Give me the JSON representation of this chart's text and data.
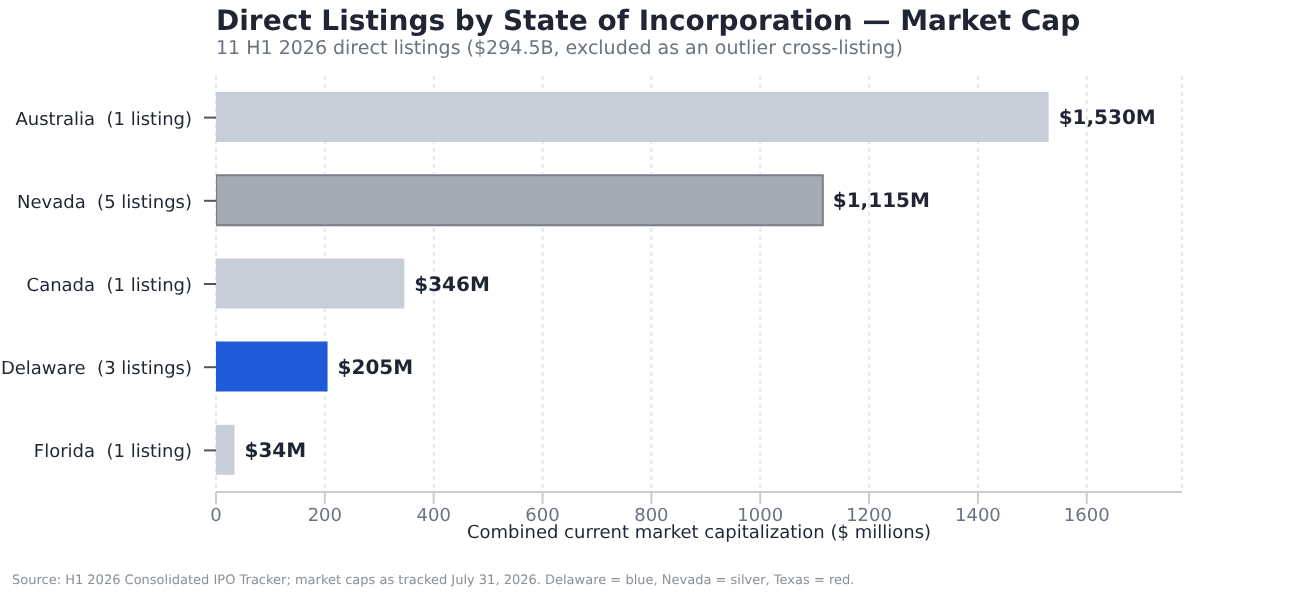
{
  "chart_data": {
    "type": "bar",
    "orientation": "horizontal",
    "title": "Direct Listings by State of Incorporation — Market Cap",
    "subtitle": "11 H1 2026 direct listings ($294.5B, excluded as an outlier cross-listing)",
    "xlabel": "Combined current market capitalization ($ millions)",
    "categories": [
      "Australia  (1 listing)",
      "Nevada  (5 listings)",
      "Canada  (1 listing)",
      "Delaware  (3 listings)",
      "Florida  (1 listing)"
    ],
    "values": [
      1530,
      1115,
      346,
      205,
      34
    ],
    "colors": [
      "#c8ced8",
      "#a6aab3",
      "#c8ced8",
      "#1f5bd8",
      "#c8ced8"
    ],
    "value_labels": [
      "$1,530M",
      "$1,115M",
      "$346M",
      "$205M",
      "$34M"
    ],
    "xlim": [
      0,
      1775
    ],
    "xticks": [
      0,
      200,
      400,
      600,
      800,
      1000,
      1200,
      1400,
      1600
    ],
    "grid": "x",
    "legend": false,
    "annotations": [
      "Source: H1 2026 Consolidated IPO Tracker; market caps as tracked July 31, 2026. Delaware = blue, Nevada = silver, Texas = red."
    ]
  }
}
